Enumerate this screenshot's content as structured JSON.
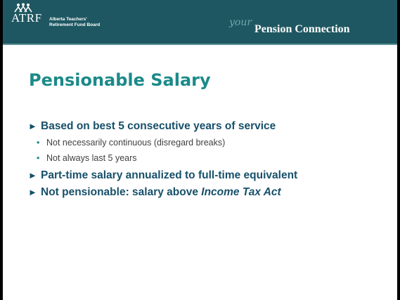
{
  "header": {
    "logo": "ATRF",
    "organization_line1": "Alberta Teachers'",
    "organization_line2": "Retirement Fund Board",
    "tagline_script": "your",
    "tagline": "Pension Connection"
  },
  "slide": {
    "title": "Pensionable Salary",
    "bullets": [
      {
        "text": "Based on best 5 consecutive years of service",
        "subbullets": [
          "Not necessarily continuous (disregard breaks)",
          "Not always last 5 years"
        ]
      },
      {
        "text": "Part-time salary annualized to full-time equivalent"
      },
      {
        "text": "Not pensionable: salary above ",
        "emphasis": "Income Tax Act"
      }
    ]
  }
}
